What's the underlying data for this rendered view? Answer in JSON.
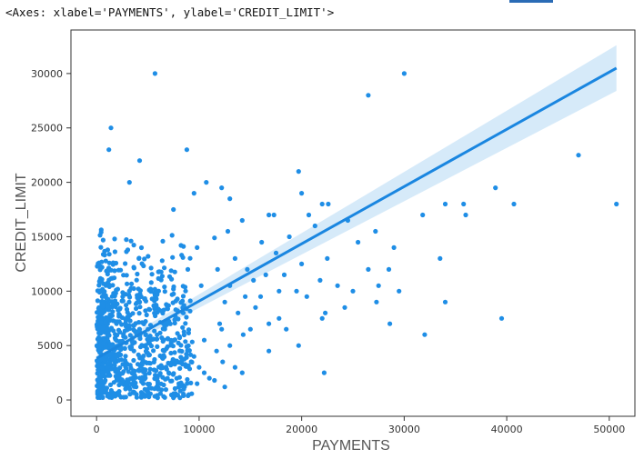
{
  "output_repr": "<Axes: xlabel='PAYMENTS', ylabel='CREDIT_LIMIT'>",
  "colors": {
    "accent": "#1f8ee6",
    "regression_line": "#1a86e0",
    "confidence_band": "#cfe6f8",
    "axes_frame": "#333333",
    "top_bar": "#2a6bb5"
  },
  "chart_data": {
    "type": "scatter",
    "xlabel": "PAYMENTS",
    "ylabel": "CREDIT_LIMIT",
    "xlim": [
      -2500,
      52500
    ],
    "ylim": [
      -1500,
      34000
    ],
    "x_ticks": [
      0,
      10000,
      20000,
      30000,
      40000,
      50000
    ],
    "y_ticks": [
      0,
      5000,
      10000,
      15000,
      20000,
      25000,
      30000
    ],
    "x_tick_labels": [
      "0",
      "10000",
      "20000",
      "30000",
      "40000",
      "50000"
    ],
    "y_tick_labels": [
      "0",
      "5000",
      "10000",
      "15000",
      "20000",
      "25000",
      "30000"
    ],
    "grid": false,
    "series": [
      {
        "values": [
          [
            5700,
            30000
          ],
          [
            30000,
            30000
          ],
          [
            26500,
            28000
          ],
          [
            1400,
            25000
          ],
          [
            1200,
            23000
          ],
          [
            8800,
            23000
          ],
          [
            4200,
            22000
          ],
          [
            47000,
            22500
          ],
          [
            19700,
            21000
          ],
          [
            3200,
            20000
          ],
          [
            10700,
            20000
          ],
          [
            12200,
            19500
          ],
          [
            38900,
            19500
          ],
          [
            9500,
            19000
          ],
          [
            20000,
            19000
          ],
          [
            13000,
            18500
          ],
          [
            22000,
            18000
          ],
          [
            22600,
            18000
          ],
          [
            34000,
            18000
          ],
          [
            35800,
            18000
          ],
          [
            40700,
            18000
          ],
          [
            50700,
            18000
          ],
          [
            7500,
            17500
          ],
          [
            16800,
            17000
          ],
          [
            17300,
            17000
          ],
          [
            20700,
            17000
          ],
          [
            31800,
            17000
          ],
          [
            36000,
            17000
          ],
          [
            24500,
            16500
          ],
          [
            14200,
            16500
          ],
          [
            21300,
            16000
          ],
          [
            12800,
            15500
          ],
          [
            27200,
            15500
          ],
          [
            18800,
            15000
          ],
          [
            11500,
            14900
          ],
          [
            25500,
            14500
          ],
          [
            16100,
            14500
          ],
          [
            9800,
            14000
          ],
          [
            29000,
            14000
          ],
          [
            17500,
            13500
          ],
          [
            13500,
            13000
          ],
          [
            22500,
            13000
          ],
          [
            33500,
            13000
          ],
          [
            20000,
            12500
          ],
          [
            8900,
            12000
          ],
          [
            11800,
            12000
          ],
          [
            14700,
            12000
          ],
          [
            16500,
            11500
          ],
          [
            18300,
            11500
          ],
          [
            21800,
            11000
          ],
          [
            15300,
            11000
          ],
          [
            13000,
            10500
          ],
          [
            23500,
            10500
          ],
          [
            27500,
            10500
          ],
          [
            26500,
            12000
          ],
          [
            28500,
            12000
          ],
          [
            10200,
            10500
          ],
          [
            17800,
            10000
          ],
          [
            19500,
            10000
          ],
          [
            25000,
            10000
          ],
          [
            29500,
            10000
          ],
          [
            14500,
            9500
          ],
          [
            16000,
            9500
          ],
          [
            20500,
            9500
          ],
          [
            12500,
            9000
          ],
          [
            27300,
            9000
          ],
          [
            34000,
            9000
          ],
          [
            15500,
            8500
          ],
          [
            22300,
            8000
          ],
          [
            24200,
            8500
          ],
          [
            13800,
            8000
          ],
          [
            17800,
            7500
          ],
          [
            22000,
            7500
          ],
          [
            16800,
            7000
          ],
          [
            28600,
            7000
          ],
          [
            39500,
            7500
          ],
          [
            12200,
            6500
          ],
          [
            18500,
            6500
          ],
          [
            14300,
            6000
          ],
          [
            32000,
            6000
          ],
          [
            10500,
            5500
          ],
          [
            13000,
            5000
          ],
          [
            19700,
            5000
          ],
          [
            11700,
            4500
          ],
          [
            16800,
            4500
          ],
          [
            9500,
            4000
          ],
          [
            12300,
            3500
          ],
          [
            10000,
            3000
          ],
          [
            14200,
            2500
          ],
          [
            22200,
            2500
          ],
          [
            10500,
            2500
          ],
          [
            11000,
            2000
          ],
          [
            12500,
            1200
          ],
          [
            7500,
            200
          ],
          [
            8500,
            1000
          ],
          [
            9000,
            500
          ],
          [
            9800,
            1500
          ],
          [
            11500,
            1800
          ],
          [
            13500,
            3000
          ],
          [
            15000,
            6500
          ],
          [
            12000,
            7000
          ]
        ]
      }
    ],
    "regression": {
      "x_start": 0,
      "y_start": 3830,
      "x_end": 50700,
      "y_end": 30500,
      "ci_half_width_start": 260,
      "ci_half_width_end": 2100
    }
  }
}
